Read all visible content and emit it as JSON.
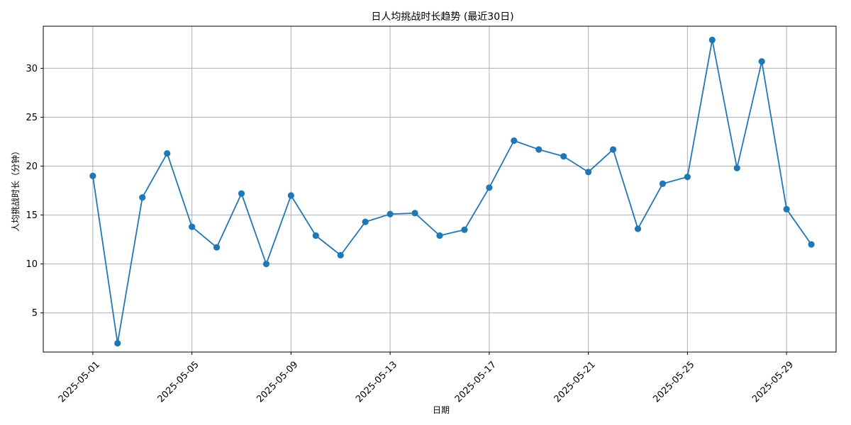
{
  "chart_data": {
    "type": "line",
    "title": "日人均挑战时长趋势 (最近30日)",
    "xlabel": "日期",
    "ylabel": "人均挑战时长（分钟）",
    "x": [
      "2025-05-01",
      "2025-05-02",
      "2025-05-03",
      "2025-05-04",
      "2025-05-05",
      "2025-05-06",
      "2025-05-07",
      "2025-05-08",
      "2025-05-09",
      "2025-05-10",
      "2025-05-11",
      "2025-05-12",
      "2025-05-13",
      "2025-05-14",
      "2025-05-15",
      "2025-05-16",
      "2025-05-17",
      "2025-05-18",
      "2025-05-19",
      "2025-05-20",
      "2025-05-21",
      "2025-05-22",
      "2025-05-23",
      "2025-05-24",
      "2025-05-25",
      "2025-05-26",
      "2025-05-27",
      "2025-05-28",
      "2025-05-29",
      "2025-05-30"
    ],
    "series": [
      {
        "values": [
          19.0,
          1.9,
          16.8,
          21.3,
          13.8,
          11.7,
          17.2,
          10.0,
          17.0,
          12.9,
          10.9,
          14.3,
          15.1,
          15.2,
          12.9,
          13.5,
          17.8,
          22.6,
          21.7,
          21.0,
          19.4,
          21.7,
          13.6,
          18.2,
          18.9,
          32.9,
          19.8,
          30.7,
          15.6,
          12.0
        ],
        "color": "#1f77b4"
      }
    ],
    "x_ticks": [
      "2025-05-01",
      "2025-05-05",
      "2025-05-09",
      "2025-05-13",
      "2025-05-17",
      "2025-05-21",
      "2025-05-25",
      "2025-05-29"
    ],
    "y_ticks": [
      5,
      10,
      15,
      20,
      25,
      30
    ],
    "xlim": [
      "2025-04-29",
      "2025-05-31"
    ],
    "ylim": [
      1.0,
      34.3
    ],
    "grid": true,
    "legend": "none"
  }
}
